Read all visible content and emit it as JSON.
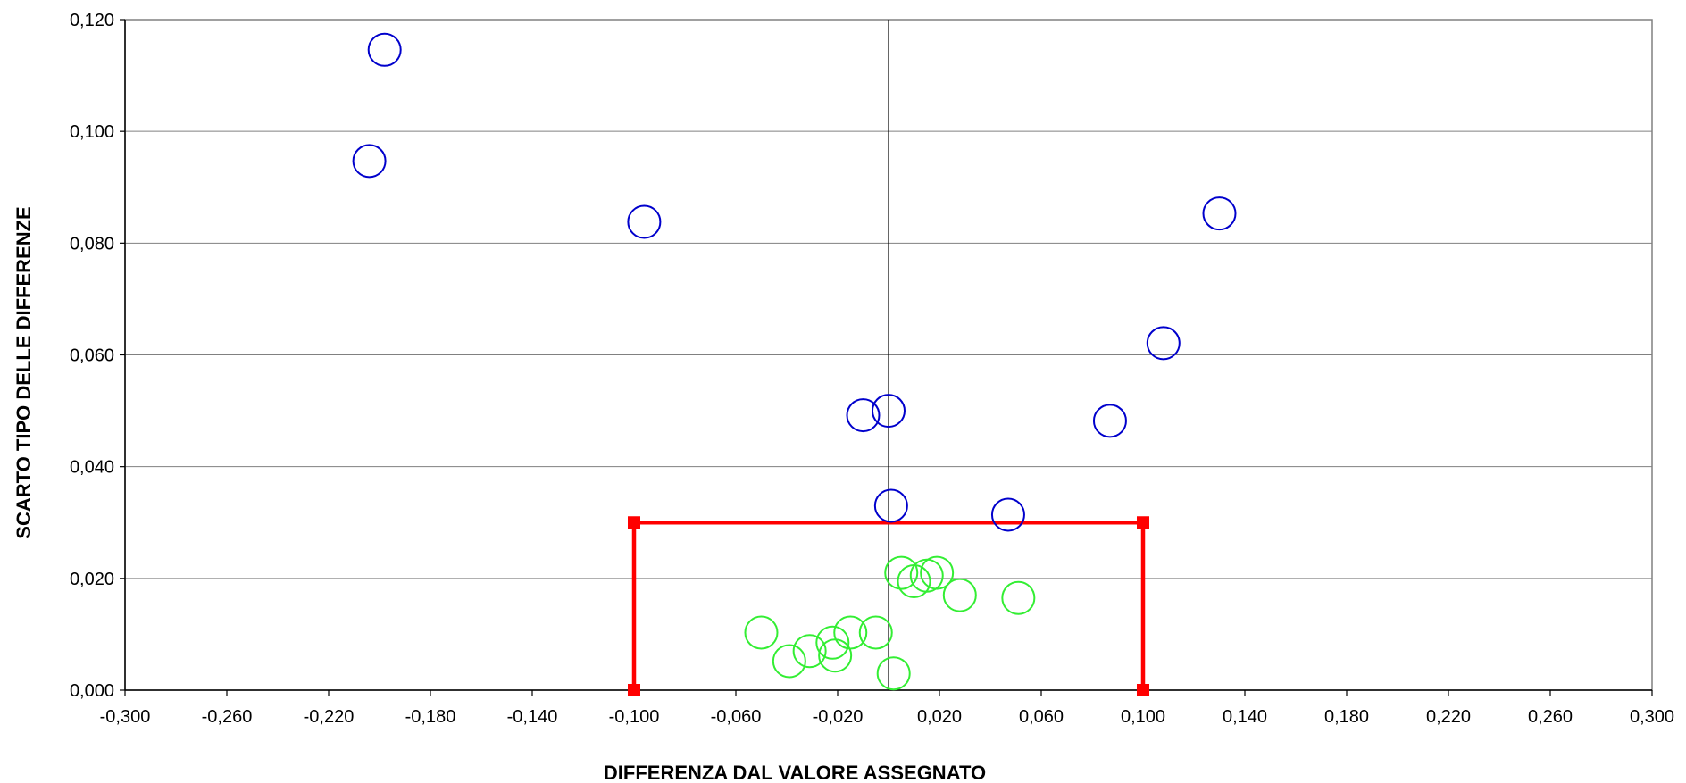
{
  "chart_data": {
    "type": "scatter",
    "title": "",
    "xlabel": "DIFFERENZA DAL VALORE ASSEGNATO",
    "ylabel": "SCARTO TIPO DELLE DIFFERENZE",
    "xlim": [
      -0.3,
      0.3
    ],
    "ylim": [
      0.0,
      0.12
    ],
    "x_ticks": [
      "-0,300",
      "-0,260",
      "-0,220",
      "-0,180",
      "-0,140",
      "-0,100",
      "-0,060",
      "-0,020",
      "0,020",
      "0,060",
      "0,100",
      "0,140",
      "0,180",
      "0,220",
      "0,260",
      "0,300"
    ],
    "y_ticks": [
      "0,000",
      "0,020",
      "0,040",
      "0,060",
      "0,080",
      "0,100",
      "0,120"
    ],
    "grid": "horizontal",
    "legend": "none",
    "reference_line_x": 0.0,
    "acceptance_region": {
      "x": [
        -0.1,
        -0.1,
        0.1,
        0.1
      ],
      "y": [
        0.0,
        0.03,
        0.03,
        0.0
      ],
      "color": "#ff0000"
    },
    "series": [
      {
        "color": "#0000cc",
        "marker": "open-circle",
        "points": [
          {
            "x": -0.198,
            "y": 0.1146
          },
          {
            "x": -0.204,
            "y": 0.0947
          },
          {
            "x": -0.096,
            "y": 0.0838
          },
          {
            "x": 0.13,
            "y": 0.0853
          },
          {
            "x": 0.108,
            "y": 0.0621
          },
          {
            "x": -0.01,
            "y": 0.0492
          },
          {
            "x": 0.0,
            "y": 0.05
          },
          {
            "x": 0.087,
            "y": 0.0482
          },
          {
            "x": 0.001,
            "y": 0.033
          },
          {
            "x": 0.047,
            "y": 0.0314
          }
        ]
      },
      {
        "color": "#33ee33",
        "marker": "open-circle",
        "points": [
          {
            "x": 0.005,
            "y": 0.021
          },
          {
            "x": 0.01,
            "y": 0.0195
          },
          {
            "x": 0.015,
            "y": 0.0205
          },
          {
            "x": 0.019,
            "y": 0.021
          },
          {
            "x": 0.028,
            "y": 0.017
          },
          {
            "x": 0.051,
            "y": 0.0165
          },
          {
            "x": -0.05,
            "y": 0.0103
          },
          {
            "x": -0.039,
            "y": 0.0052
          },
          {
            "x": -0.031,
            "y": 0.007
          },
          {
            "x": -0.022,
            "y": 0.0085
          },
          {
            "x": -0.021,
            "y": 0.0062
          },
          {
            "x": -0.015,
            "y": 0.0103
          },
          {
            "x": -0.005,
            "y": 0.0103
          },
          {
            "x": 0.002,
            "y": 0.003
          }
        ]
      }
    ]
  }
}
